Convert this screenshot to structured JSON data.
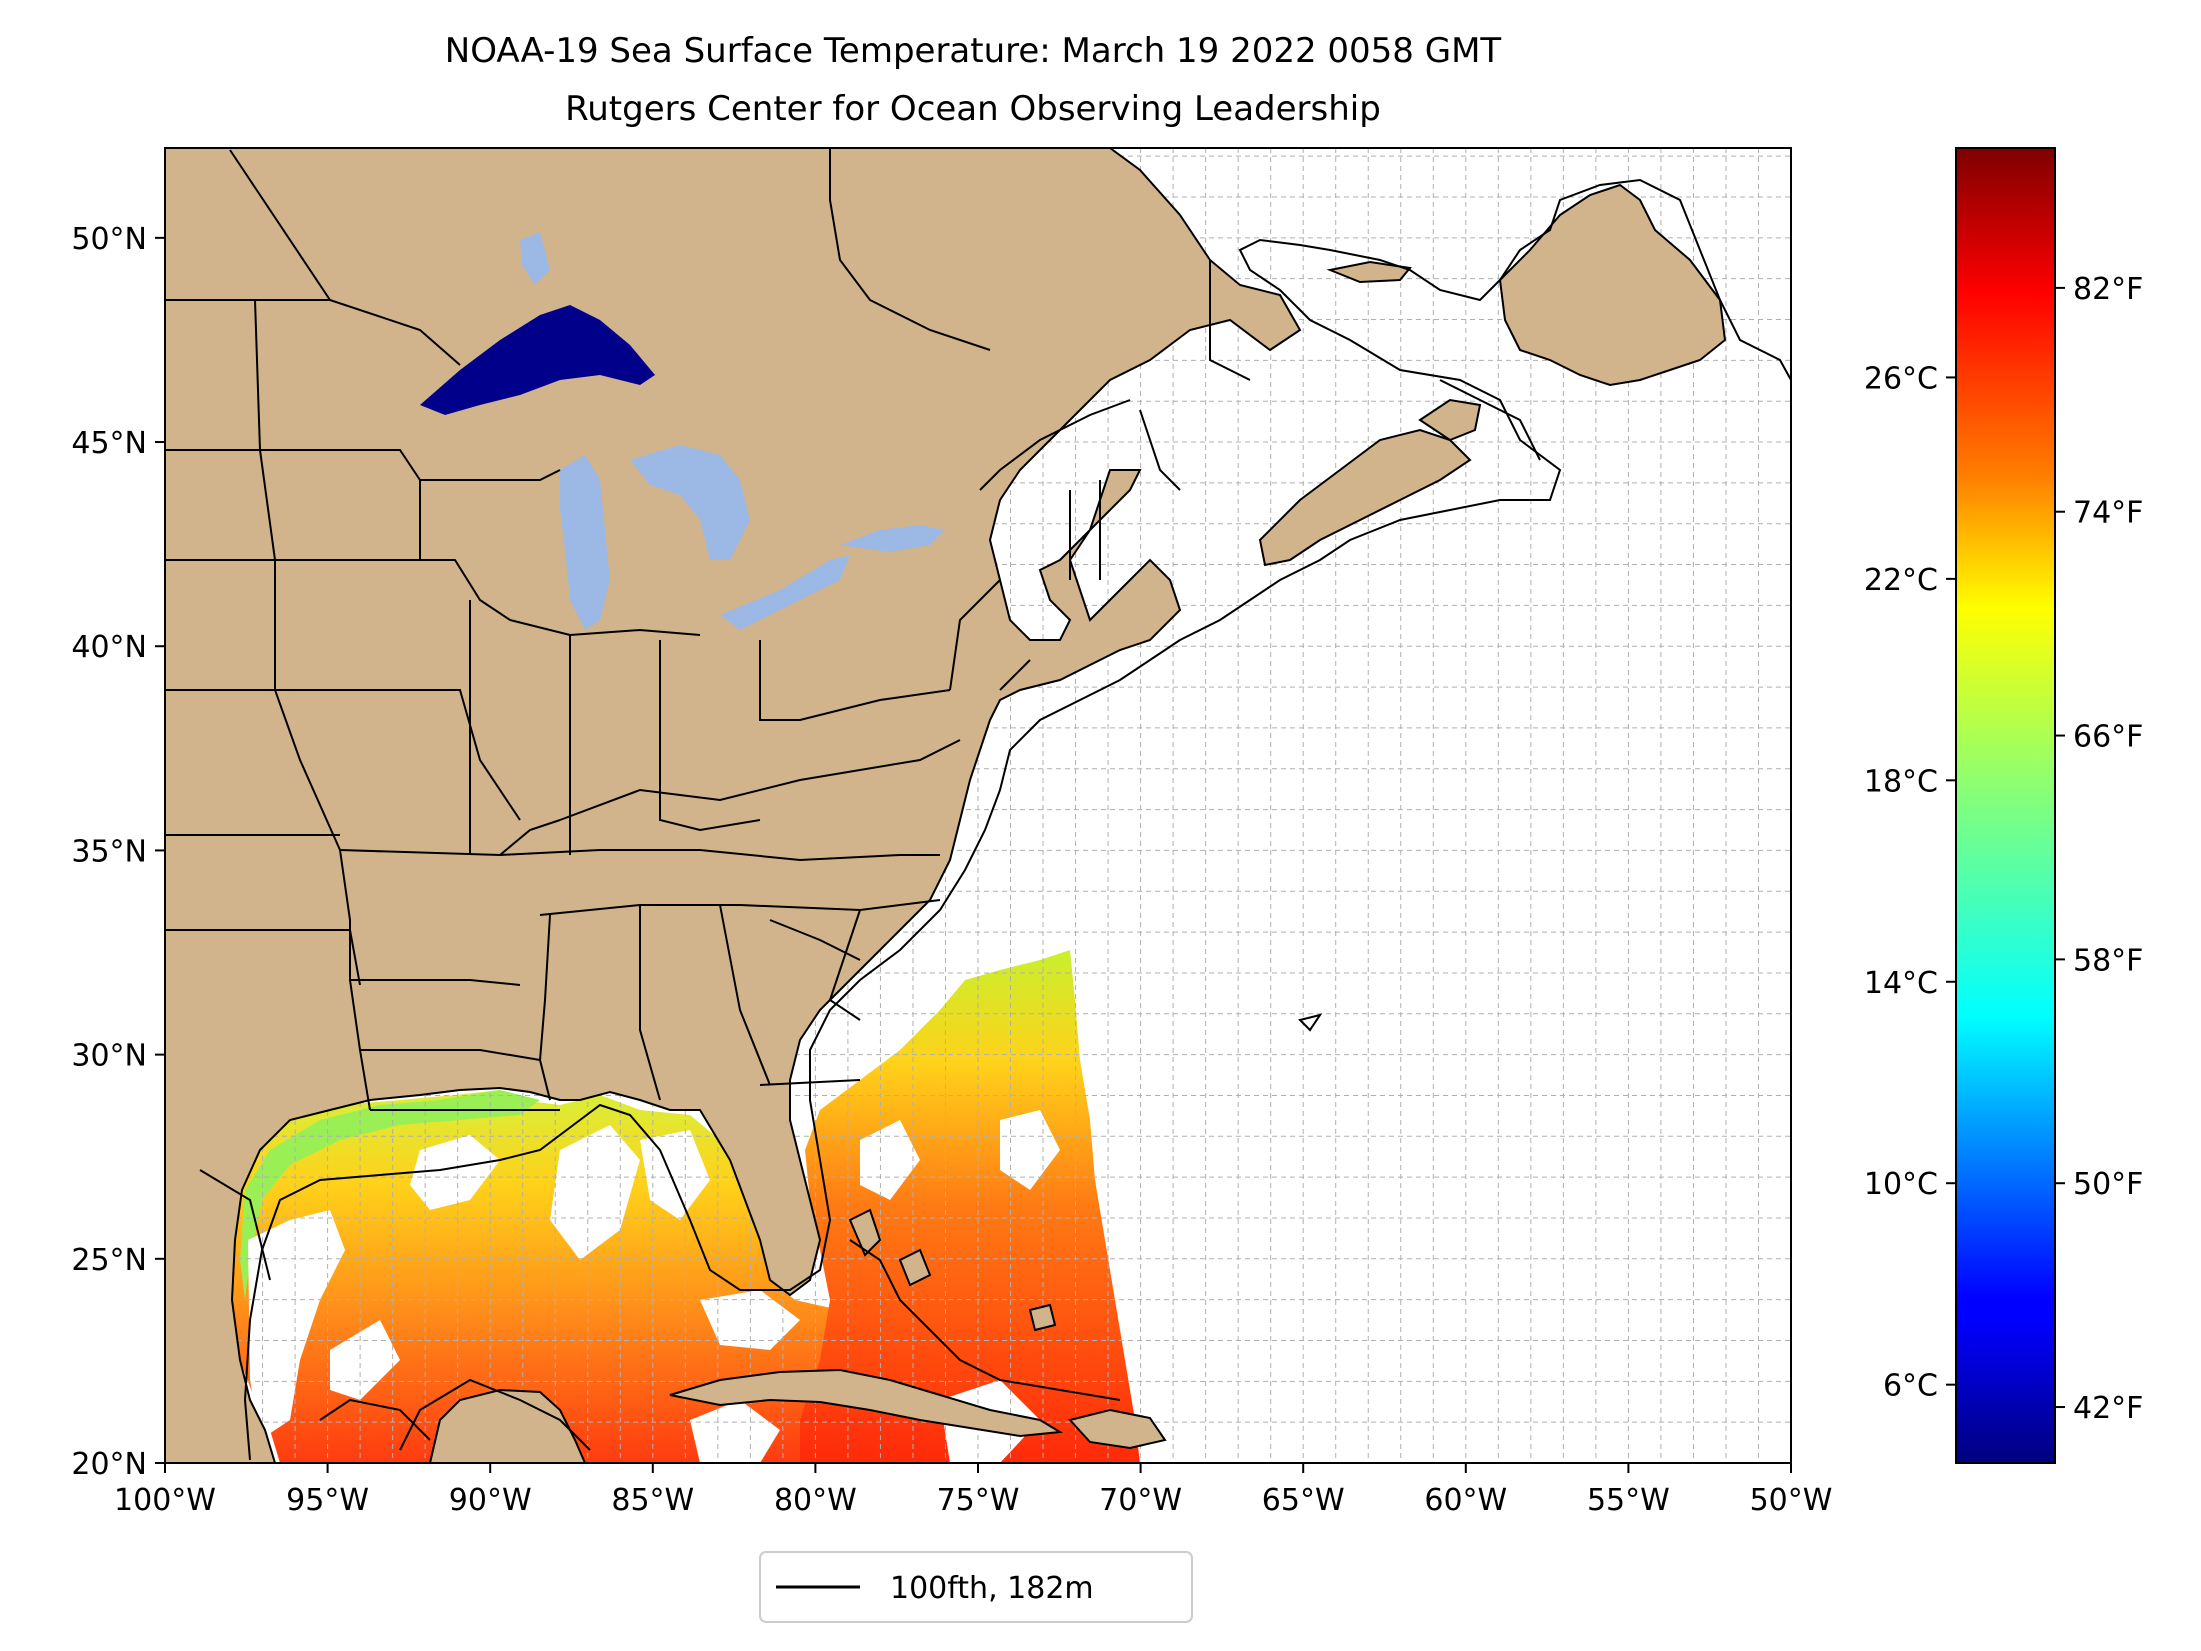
{
  "title": {
    "line1": "NOAA-19 Sea Surface Temperature: March 19 2022 0058 GMT",
    "line2": "Rutgers Center for Ocean Observing Leadership"
  },
  "map": {
    "lon_range": [
      -100,
      -50
    ],
    "lat_range": [
      20,
      52.2
    ],
    "land_color": "#d2b48c",
    "lake_color": "#9cb8e4",
    "lake_superior_color": "#00008b",
    "gridlines": true,
    "grid_step_deg": 1,
    "x_ticks": [
      {
        "value": -100,
        "label": "100°W"
      },
      {
        "value": -95,
        "label": "95°W"
      },
      {
        "value": -90,
        "label": "90°W"
      },
      {
        "value": -85,
        "label": "85°W"
      },
      {
        "value": -80,
        "label": "80°W"
      },
      {
        "value": -75,
        "label": "75°W"
      },
      {
        "value": -70,
        "label": "70°W"
      },
      {
        "value": -65,
        "label": "65°W"
      },
      {
        "value": -60,
        "label": "60°W"
      },
      {
        "value": -55,
        "label": "55°W"
      },
      {
        "value": -50,
        "label": "50°W"
      }
    ],
    "y_ticks": [
      {
        "value": 20,
        "label": "20°N"
      },
      {
        "value": 25,
        "label": "25°N"
      },
      {
        "value": 30,
        "label": "30°N"
      },
      {
        "value": 35,
        "label": "35°N"
      },
      {
        "value": 40,
        "label": "40°N"
      },
      {
        "value": 45,
        "label": "45°N"
      },
      {
        "value": 50,
        "label": "50°N"
      }
    ]
  },
  "legend": {
    "label": "100fth, 182m",
    "line_color": "#000000",
    "placement": "below map, centered"
  },
  "colorbar": {
    "colormap": "jet",
    "range_f": [
      40,
      87
    ],
    "colors": [
      "#00007f",
      "#0000ff",
      "#007fff",
      "#00ffff",
      "#7fff7f",
      "#ffff00",
      "#ff7f00",
      "#ff0000",
      "#7f0000"
    ],
    "celsius_ticks": [
      {
        "value": 6,
        "label": "6°C"
      },
      {
        "value": 10,
        "label": "10°C"
      },
      {
        "value": 14,
        "label": "14°C"
      },
      {
        "value": 18,
        "label": "18°C"
      },
      {
        "value": 22,
        "label": "22°C"
      },
      {
        "value": 26,
        "label": "26°C"
      }
    ],
    "fahrenheit_ticks": [
      {
        "value": 42,
        "label": "42°F"
      },
      {
        "value": 50,
        "label": "50°F"
      },
      {
        "value": 58,
        "label": "58°F"
      },
      {
        "value": 66,
        "label": "66°F"
      },
      {
        "value": 74,
        "label": "74°F"
      },
      {
        "value": 82,
        "label": "82°F"
      }
    ]
  }
}
